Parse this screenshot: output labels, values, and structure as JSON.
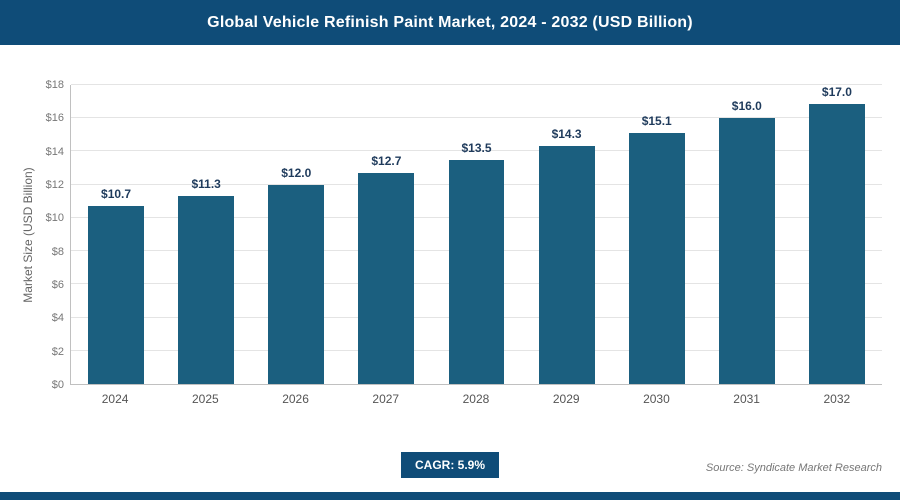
{
  "header": {
    "title": "Global Vehicle Refinish Paint Market, 2024 - 2032 (USD Billion)"
  },
  "chart_data": {
    "type": "bar",
    "title": "Global Vehicle Refinish Paint Market, 2024 - 2032 (USD Billion)",
    "categories": [
      "2024",
      "2025",
      "2026",
      "2027",
      "2028",
      "2029",
      "2030",
      "2031",
      "2032"
    ],
    "values": [
      10.7,
      11.3,
      12.0,
      12.7,
      13.5,
      14.3,
      15.1,
      16.0,
      17.0
    ],
    "value_labels": [
      "$10.7",
      "$11.3",
      "$12.0",
      "$12.7",
      "$13.5",
      "$14.3",
      "$15.1",
      "$16.0",
      "$17.0"
    ],
    "xlabel": "",
    "ylabel": "Market Size (USD Billion)",
    "ylim": [
      0,
      18
    ],
    "ytick_step": 2,
    "ytick_labels": [
      "$0",
      "$2",
      "$4",
      "$6",
      "$8",
      "$10",
      "$12",
      "$14",
      "$16",
      "$18"
    ],
    "grid": true,
    "legend": false,
    "bar_color": "#1b5f7f"
  },
  "footer": {
    "cagr_label": "CAGR: 5.9%",
    "source": "Source: Syndicate Market Research"
  },
  "colors": {
    "header_bg": "#0f4c78",
    "bar": "#1b5f7f",
    "value_label": "#1f3b5c",
    "accent": "#0f4c78"
  }
}
